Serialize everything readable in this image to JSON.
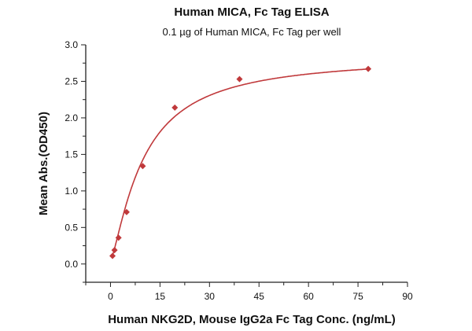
{
  "chart_data": {
    "type": "scatter",
    "title": "Human MICA, Fc Tag ELISA",
    "subtitle": "0.1 µg of Human MICA, Fc Tag per well",
    "xlabel": "Human NKG2D, Mouse IgG2a Fc Tag Conc. (ng/mL)",
    "ylabel": "Mean Abs.(OD450)",
    "xlim": [
      -7.5,
      90
    ],
    "ylim": [
      -0.25,
      3.0
    ],
    "xticks": [
      "0",
      "15",
      "30",
      "45",
      "60",
      "75",
      "90"
    ],
    "yticks": [
      "0.0",
      "0.5",
      "1.0",
      "1.5",
      "2.0",
      "2.5",
      "3.0"
    ],
    "grid": false,
    "color": "#c0393b",
    "fit_line": true,
    "marker": "diamond",
    "series": [
      {
        "x": [
          0.61,
          1.22,
          2.44,
          4.88,
          9.77,
          19.5,
          39.1,
          78.1
        ],
        "y": [
          0.11,
          0.19,
          0.36,
          0.71,
          1.34,
          2.14,
          2.53,
          2.67
        ]
      }
    ]
  }
}
